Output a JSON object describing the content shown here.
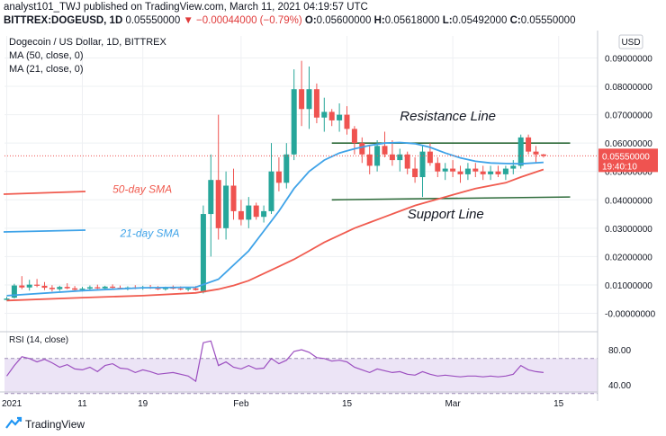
{
  "header": {
    "line1": "analyst101_TWJ published on TradingView.com, March 11, 2021 04:19:57 UTC",
    "symbol": "BITTREX:DOGEUSD, 1D",
    "last": "0.05550000",
    "change": "▼ −0.00044000 (−0.79%)",
    "o_label": "O:",
    "o_value": "0.05600000",
    "h_label": "H:",
    "h_value": "0.05618000",
    "l_label": "L:",
    "l_value": "0.05492000",
    "c_label": "C:",
    "c_value": "0.05550000"
  },
  "legend": {
    "title": "Dogecoin / US Dollar, 1D, BITTREX",
    "ma50": "MA (50, close, 0)",
    "ma21": "MA (21, close, 0)"
  },
  "currency_button": "USD",
  "price_tag": {
    "price": "0.05550000",
    "countdown": "19:40:10"
  },
  "rsi_label": "RSI (14, close)",
  "footer": {
    "brand": "TradingView"
  },
  "colors": {
    "up": "#26a69a",
    "down": "#ef5350",
    "ma50": "#f05b4f",
    "ma21": "#3fa3e8",
    "rsi": "#9c4fc0",
    "level_line": "#2e6b3a"
  },
  "chart_data": [
    {
      "type": "candlestick",
      "title": "Dogecoin / US Dollar, 1D, BITTREX",
      "x_ticks": [
        "2021",
        "11",
        "19",
        "Feb",
        "15",
        "Mar",
        "15"
      ],
      "x_tick_index": [
        0,
        10,
        18,
        31,
        45,
        59,
        73
      ],
      "y_ticks": [
        "0.09000000",
        "0.08000000",
        "0.07000000",
        "0.06000000",
        "0.05000000",
        "0.04000000",
        "0.03000000",
        "0.02000000",
        "0.01000000",
        "-0.00000000"
      ],
      "y_tick_values": [
        0.09,
        0.08,
        0.07,
        0.06,
        0.05,
        0.04,
        0.03,
        0.02,
        0.01,
        0.0
      ],
      "ylim": [
        -0.005,
        0.095
      ],
      "candles": [
        {
          "o": 0.0047,
          "h": 0.0058,
          "l": 0.0045,
          "c": 0.0052
        },
        {
          "o": 0.0055,
          "h": 0.0104,
          "l": 0.0052,
          "c": 0.0098
        },
        {
          "o": 0.0098,
          "h": 0.0131,
          "l": 0.0085,
          "c": 0.0091
        },
        {
          "o": 0.0091,
          "h": 0.0118,
          "l": 0.008,
          "c": 0.0101
        },
        {
          "o": 0.0101,
          "h": 0.0121,
          "l": 0.0092,
          "c": 0.0097
        },
        {
          "o": 0.0097,
          "h": 0.011,
          "l": 0.0082,
          "c": 0.009
        },
        {
          "o": 0.009,
          "h": 0.0099,
          "l": 0.0077,
          "c": 0.0085
        },
        {
          "o": 0.0085,
          "h": 0.0097,
          "l": 0.0079,
          "c": 0.0093
        },
        {
          "o": 0.0093,
          "h": 0.0106,
          "l": 0.0085,
          "c": 0.0088
        },
        {
          "o": 0.0088,
          "h": 0.0096,
          "l": 0.0081,
          "c": 0.0083
        },
        {
          "o": 0.0083,
          "h": 0.0093,
          "l": 0.0077,
          "c": 0.0087
        },
        {
          "o": 0.0087,
          "h": 0.0098,
          "l": 0.0082,
          "c": 0.0092
        },
        {
          "o": 0.0092,
          "h": 0.0101,
          "l": 0.0086,
          "c": 0.0088
        },
        {
          "o": 0.0088,
          "h": 0.0097,
          "l": 0.0083,
          "c": 0.0094
        },
        {
          "o": 0.0094,
          "h": 0.0102,
          "l": 0.0088,
          "c": 0.009
        },
        {
          "o": 0.009,
          "h": 0.0098,
          "l": 0.0084,
          "c": 0.0086
        },
        {
          "o": 0.0086,
          "h": 0.0095,
          "l": 0.0081,
          "c": 0.0091
        },
        {
          "o": 0.0091,
          "h": 0.0099,
          "l": 0.0085,
          "c": 0.0089
        },
        {
          "o": 0.0089,
          "h": 0.0097,
          "l": 0.0083,
          "c": 0.0092
        },
        {
          "o": 0.0092,
          "h": 0.01,
          "l": 0.0086,
          "c": 0.0088
        },
        {
          "o": 0.0088,
          "h": 0.0096,
          "l": 0.0082,
          "c": 0.0085
        },
        {
          "o": 0.0085,
          "h": 0.0094,
          "l": 0.008,
          "c": 0.009
        },
        {
          "o": 0.009,
          "h": 0.0098,
          "l": 0.0084,
          "c": 0.0087
        },
        {
          "o": 0.0087,
          "h": 0.0095,
          "l": 0.0081,
          "c": 0.0084
        },
        {
          "o": 0.0084,
          "h": 0.0093,
          "l": 0.0078,
          "c": 0.0088
        },
        {
          "o": 0.0088,
          "h": 0.0096,
          "l": 0.008,
          "c": 0.0082
        },
        {
          "o": 0.0074,
          "h": 0.038,
          "l": 0.007,
          "c": 0.035
        },
        {
          "o": 0.035,
          "h": 0.056,
          "l": 0.02,
          "c": 0.047
        },
        {
          "o": 0.047,
          "h": 0.07,
          "l": 0.026,
          "c": 0.03
        },
        {
          "o": 0.03,
          "h": 0.05,
          "l": 0.026,
          "c": 0.045
        },
        {
          "o": 0.045,
          "h": 0.051,
          "l": 0.033,
          "c": 0.036
        },
        {
          "o": 0.036,
          "h": 0.04,
          "l": 0.031,
          "c": 0.033
        },
        {
          "o": 0.033,
          "h": 0.041,
          "l": 0.03,
          "c": 0.038
        },
        {
          "o": 0.038,
          "h": 0.039,
          "l": 0.033,
          "c": 0.034
        },
        {
          "o": 0.034,
          "h": 0.038,
          "l": 0.032,
          "c": 0.036
        },
        {
          "o": 0.036,
          "h": 0.06,
          "l": 0.035,
          "c": 0.05
        },
        {
          "o": 0.05,
          "h": 0.055,
          "l": 0.043,
          "c": 0.046
        },
        {
          "o": 0.046,
          "h": 0.06,
          "l": 0.044,
          "c": 0.056
        },
        {
          "o": 0.056,
          "h": 0.086,
          "l": 0.054,
          "c": 0.079
        },
        {
          "o": 0.079,
          "h": 0.089,
          "l": 0.066,
          "c": 0.072
        },
        {
          "o": 0.072,
          "h": 0.087,
          "l": 0.065,
          "c": 0.079
        },
        {
          "o": 0.079,
          "h": 0.081,
          "l": 0.067,
          "c": 0.069
        },
        {
          "o": 0.069,
          "h": 0.076,
          "l": 0.064,
          "c": 0.071
        },
        {
          "o": 0.071,
          "h": 0.072,
          "l": 0.066,
          "c": 0.068
        },
        {
          "o": 0.068,
          "h": 0.074,
          "l": 0.064,
          "c": 0.07
        },
        {
          "o": 0.07,
          "h": 0.073,
          "l": 0.063,
          "c": 0.065
        },
        {
          "o": 0.065,
          "h": 0.066,
          "l": 0.056,
          "c": 0.06
        },
        {
          "o": 0.06,
          "h": 0.062,
          "l": 0.053,
          "c": 0.056
        },
        {
          "o": 0.056,
          "h": 0.059,
          "l": 0.049,
          "c": 0.052
        },
        {
          "o": 0.052,
          "h": 0.061,
          "l": 0.05,
          "c": 0.059
        },
        {
          "o": 0.059,
          "h": 0.064,
          "l": 0.055,
          "c": 0.056
        },
        {
          "o": 0.056,
          "h": 0.061,
          "l": 0.052,
          "c": 0.054
        },
        {
          "o": 0.054,
          "h": 0.058,
          "l": 0.05,
          "c": 0.056
        },
        {
          "o": 0.056,
          "h": 0.057,
          "l": 0.049,
          "c": 0.051
        },
        {
          "o": 0.051,
          "h": 0.055,
          "l": 0.046,
          "c": 0.048
        },
        {
          "o": 0.048,
          "h": 0.059,
          "l": 0.041,
          "c": 0.057
        },
        {
          "o": 0.057,
          "h": 0.06,
          "l": 0.052,
          "c": 0.053
        },
        {
          "o": 0.053,
          "h": 0.055,
          "l": 0.048,
          "c": 0.05
        },
        {
          "o": 0.05,
          "h": 0.053,
          "l": 0.047,
          "c": 0.051
        },
        {
          "o": 0.051,
          "h": 0.054,
          "l": 0.048,
          "c": 0.05
        },
        {
          "o": 0.05,
          "h": 0.052,
          "l": 0.046,
          "c": 0.049
        },
        {
          "o": 0.049,
          "h": 0.053,
          "l": 0.047,
          "c": 0.051
        },
        {
          "o": 0.051,
          "h": 0.053,
          "l": 0.048,
          "c": 0.05
        },
        {
          "o": 0.05,
          "h": 0.052,
          "l": 0.047,
          "c": 0.049
        },
        {
          "o": 0.049,
          "h": 0.052,
          "l": 0.047,
          "c": 0.05
        },
        {
          "o": 0.05,
          "h": 0.052,
          "l": 0.048,
          "c": 0.049
        },
        {
          "o": 0.049,
          "h": 0.052,
          "l": 0.047,
          "c": 0.051
        },
        {
          "o": 0.051,
          "h": 0.054,
          "l": 0.049,
          "c": 0.052
        },
        {
          "o": 0.052,
          "h": 0.063,
          "l": 0.051,
          "c": 0.062
        },
        {
          "o": 0.062,
          "h": 0.063,
          "l": 0.056,
          "c": 0.057
        },
        {
          "o": 0.057,
          "h": 0.059,
          "l": 0.053,
          "c": 0.056
        },
        {
          "o": 0.056,
          "h": 0.05618,
          "l": 0.05492,
          "c": 0.0555
        }
      ],
      "ma21": [
        [
          0,
          0.0062
        ],
        [
          10,
          0.008
        ],
        [
          18,
          0.009
        ],
        [
          25,
          0.0092
        ],
        [
          28,
          0.012
        ],
        [
          30,
          0.017
        ],
        [
          32,
          0.022
        ],
        [
          34,
          0.029
        ],
        [
          36,
          0.036
        ],
        [
          38,
          0.044
        ],
        [
          40,
          0.05
        ],
        [
          42,
          0.054
        ],
        [
          44,
          0.0565
        ],
        [
          46,
          0.058
        ],
        [
          48,
          0.0592
        ],
        [
          50,
          0.06
        ],
        [
          52,
          0.0602
        ],
        [
          54,
          0.0598
        ],
        [
          56,
          0.0585
        ],
        [
          58,
          0.0565
        ],
        [
          60,
          0.0548
        ],
        [
          62,
          0.0536
        ],
        [
          64,
          0.053
        ],
        [
          66,
          0.0528
        ],
        [
          68,
          0.0527
        ],
        [
          71,
          0.0532
        ]
      ],
      "ma50": [
        [
          0,
          0.0045
        ],
        [
          10,
          0.0055
        ],
        [
          18,
          0.0062
        ],
        [
          25,
          0.0072
        ],
        [
          28,
          0.0085
        ],
        [
          30,
          0.0098
        ],
        [
          32,
          0.0115
        ],
        [
          34,
          0.014
        ],
        [
          36,
          0.0165
        ],
        [
          38,
          0.019
        ],
        [
          40,
          0.022
        ],
        [
          42,
          0.025
        ],
        [
          44,
          0.0275
        ],
        [
          46,
          0.03
        ],
        [
          48,
          0.032
        ],
        [
          50,
          0.034
        ],
        [
          52,
          0.036
        ],
        [
          54,
          0.038
        ],
        [
          56,
          0.0395
        ],
        [
          58,
          0.041
        ],
        [
          60,
          0.0425
        ],
        [
          62,
          0.044
        ],
        [
          64,
          0.045
        ],
        [
          66,
          0.046
        ],
        [
          68,
          0.048
        ],
        [
          71,
          0.0507
        ]
      ],
      "resistance": {
        "x": [
          43,
          75
        ],
        "y": 0.06
      },
      "support": {
        "x": [
          43,
          75
        ],
        "y": 0.0405
      },
      "annotations": [
        {
          "text": "Resistance Line",
          "x": 52,
          "y": 0.068
        },
        {
          "text": "Support Line",
          "x": 53,
          "y": 0.0335
        },
        {
          "text": "50-day SMA",
          "x": 14,
          "y": 0.0425
        },
        {
          "text": "21-day SMA",
          "x": 15,
          "y": 0.027
        }
      ],
      "current_price": 0.0555,
      "grid": true
    },
    {
      "type": "line",
      "title": "RSI (14, close)",
      "y_ticks": [
        "80.00",
        "40.00"
      ],
      "y_tick_values": [
        80,
        40
      ],
      "ylim": [
        30,
        90
      ],
      "band": [
        30,
        70
      ],
      "series": [
        {
          "values": [
            [
              0,
              50
            ],
            [
              1,
              62
            ],
            [
              2,
              72
            ],
            [
              3,
              70
            ],
            [
              4,
              66
            ],
            [
              5,
              69
            ],
            [
              6,
              65
            ],
            [
              7,
              60
            ],
            [
              8,
              63
            ],
            [
              9,
              58
            ],
            [
              10,
              57
            ],
            [
              11,
              60
            ],
            [
              12,
              55
            ],
            [
              13,
              62
            ],
            [
              14,
              64
            ],
            [
              15,
              59
            ],
            [
              16,
              58
            ],
            [
              17,
              54
            ],
            [
              18,
              57
            ],
            [
              19,
              55
            ],
            [
              20,
              52
            ],
            [
              21,
              53
            ],
            [
              22,
              54
            ],
            [
              23,
              52
            ],
            [
              24,
              50
            ],
            [
              25,
              44
            ],
            [
              26,
              88
            ],
            [
              27,
              90
            ],
            [
              28,
              62
            ],
            [
              29,
              66
            ],
            [
              30,
              60
            ],
            [
              31,
              58
            ],
            [
              32,
              62
            ],
            [
              33,
              58
            ],
            [
              34,
              59
            ],
            [
              35,
              70
            ],
            [
              36,
              64
            ],
            [
              37,
              68
            ],
            [
              38,
              78
            ],
            [
              39,
              80
            ],
            [
              40,
              77
            ],
            [
              41,
              71
            ],
            [
              42,
              70
            ],
            [
              43,
              67
            ],
            [
              44,
              68
            ],
            [
              45,
              66
            ],
            [
              46,
              60
            ],
            [
              47,
              57
            ],
            [
              48,
              54
            ],
            [
              49,
              58
            ],
            [
              50,
              56
            ],
            [
              51,
              54
            ],
            [
              52,
              55
            ],
            [
              53,
              52
            ],
            [
              54,
              51
            ],
            [
              55,
              55
            ],
            [
              56,
              52
            ],
            [
              57,
              50
            ],
            [
              58,
              51
            ],
            [
              59,
              50
            ],
            [
              60,
              49
            ],
            [
              61,
              50
            ],
            [
              62,
              50
            ],
            [
              63,
              49
            ],
            [
              64,
              50
            ],
            [
              65,
              49
            ],
            [
              66,
              50
            ],
            [
              67,
              52
            ],
            [
              68,
              62
            ],
            [
              69,
              57
            ],
            [
              70,
              55
            ],
            [
              71,
              54
            ]
          ]
        }
      ]
    }
  ]
}
